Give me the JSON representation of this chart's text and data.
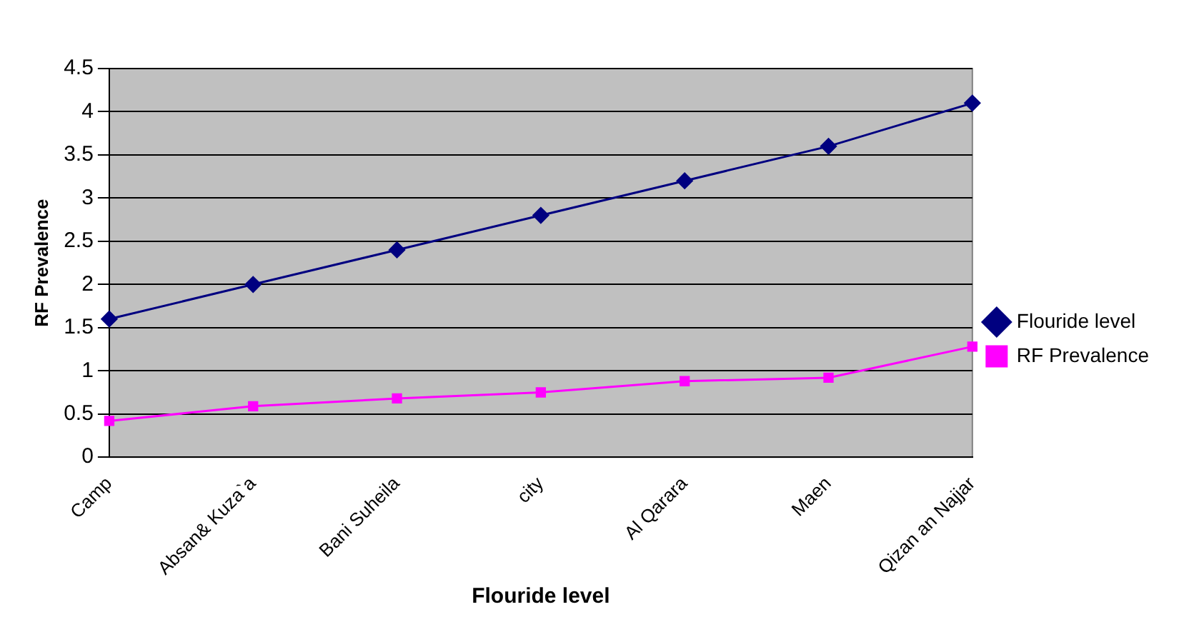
{
  "chart_data": {
    "type": "line",
    "xlabel": "Flouride level",
    "ylabel": "RF Prevalence",
    "categories": [
      "Camp",
      "Absan& Kuza`a",
      "Bani Suheila",
      "city",
      "Al Qarara",
      "Maen",
      "Qizan an Najjar"
    ],
    "series": [
      {
        "name": "Flouride level",
        "color": "#000080",
        "marker": "diamond",
        "values": [
          1.6,
          2.0,
          2.4,
          2.8,
          3.2,
          3.6,
          4.1
        ]
      },
      {
        "name": "RF Prevalence",
        "color": "#ff00ff",
        "marker": "square",
        "values": [
          0.42,
          0.59,
          0.68,
          0.75,
          0.88,
          0.92,
          1.28
        ]
      }
    ],
    "ylim": [
      0,
      4.5
    ],
    "yticks": [
      0,
      0.5,
      1,
      1.5,
      2,
      2.5,
      3,
      3.5,
      4,
      4.5
    ],
    "grid": "y",
    "legend": "right",
    "line_style": "solid"
  }
}
